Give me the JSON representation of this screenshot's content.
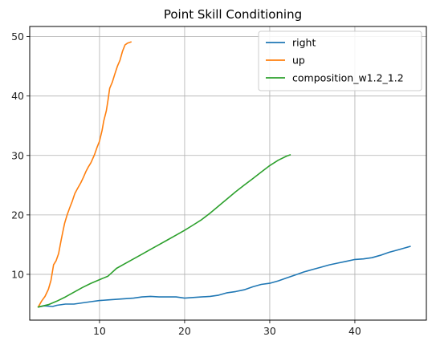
{
  "chart_data": {
    "type": "line",
    "title": "Point Skill Conditioning",
    "xlabel": "",
    "ylabel": "",
    "xlim": [
      1.8,
      48.4
    ],
    "ylim": [
      2.3,
      51.7
    ],
    "xticks": [
      10,
      20,
      30,
      40
    ],
    "yticks": [
      10,
      20,
      30,
      40,
      50
    ],
    "grid": true,
    "legend_position": "top-right",
    "series": [
      {
        "name": "right",
        "color": "#1f77b4",
        "points": [
          [
            2.8,
            4.5
          ],
          [
            3.5,
            4.7
          ],
          [
            4.5,
            4.6
          ],
          [
            5.0,
            4.8
          ],
          [
            6.0,
            5.0
          ],
          [
            7.0,
            5.0
          ],
          [
            8.0,
            5.2
          ],
          [
            9.0,
            5.4
          ],
          [
            10.0,
            5.6
          ],
          [
            11.0,
            5.7
          ],
          [
            12.0,
            5.8
          ],
          [
            13.0,
            5.9
          ],
          [
            14.0,
            6.0
          ],
          [
            15.0,
            6.2
          ],
          [
            16.0,
            6.3
          ],
          [
            17.0,
            6.2
          ],
          [
            18.0,
            6.2
          ],
          [
            19.0,
            6.2
          ],
          [
            20.0,
            6.0
          ],
          [
            21.0,
            6.1
          ],
          [
            22.0,
            6.2
          ],
          [
            23.0,
            6.3
          ],
          [
            24.0,
            6.5
          ],
          [
            25.0,
            6.9
          ],
          [
            26.0,
            7.1
          ],
          [
            27.0,
            7.4
          ],
          [
            28.0,
            7.9
          ],
          [
            29.0,
            8.3
          ],
          [
            30.0,
            8.5
          ],
          [
            31.0,
            8.9
          ],
          [
            32.0,
            9.4
          ],
          [
            33.0,
            9.9
          ],
          [
            34.0,
            10.4
          ],
          [
            35.0,
            10.8
          ],
          [
            36.0,
            11.2
          ],
          [
            37.0,
            11.6
          ],
          [
            38.0,
            11.9
          ],
          [
            39.0,
            12.2
          ],
          [
            40.0,
            12.5
          ],
          [
            41.0,
            12.6
          ],
          [
            42.0,
            12.8
          ],
          [
            43.0,
            13.2
          ],
          [
            44.0,
            13.7
          ],
          [
            45.0,
            14.1
          ],
          [
            46.0,
            14.5
          ],
          [
            46.5,
            14.7
          ]
        ]
      },
      {
        "name": "up",
        "color": "#ff7f0e",
        "points": [
          [
            2.8,
            4.5
          ],
          [
            3.2,
            5.5
          ],
          [
            3.6,
            6.3
          ],
          [
            4.0,
            7.5
          ],
          [
            4.3,
            9.0
          ],
          [
            4.6,
            11.6
          ],
          [
            4.9,
            12.3
          ],
          [
            5.2,
            13.5
          ],
          [
            5.5,
            15.8
          ],
          [
            5.7,
            17.2
          ],
          [
            5.9,
            18.6
          ],
          [
            6.2,
            20.0
          ],
          [
            6.5,
            21.2
          ],
          [
            6.8,
            22.3
          ],
          [
            7.1,
            23.6
          ],
          [
            7.4,
            24.4
          ],
          [
            7.8,
            25.4
          ],
          [
            8.1,
            26.3
          ],
          [
            8.4,
            27.3
          ],
          [
            8.7,
            28.1
          ],
          [
            9.0,
            28.8
          ],
          [
            9.4,
            30.1
          ],
          [
            9.7,
            31.3
          ],
          [
            10.0,
            32.4
          ],
          [
            10.3,
            34.2
          ],
          [
            10.5,
            35.8
          ],
          [
            10.8,
            37.5
          ],
          [
            11.0,
            39.3
          ],
          [
            11.2,
            41.3
          ],
          [
            11.5,
            42.3
          ],
          [
            11.8,
            43.7
          ],
          [
            12.1,
            45.0
          ],
          [
            12.4,
            46.0
          ],
          [
            12.7,
            47.5
          ],
          [
            13.0,
            48.6
          ],
          [
            13.3,
            48.9
          ],
          [
            13.7,
            49.1
          ]
        ]
      },
      {
        "name": "composition_w1.2_1.2",
        "color": "#2ca02c",
        "points": [
          [
            2.8,
            4.5
          ],
          [
            4.0,
            4.9
          ],
          [
            5.0,
            5.5
          ],
          [
            6.0,
            6.2
          ],
          [
            7.0,
            7.0
          ],
          [
            8.0,
            7.8
          ],
          [
            9.0,
            8.5
          ],
          [
            10.0,
            9.1
          ],
          [
            11.0,
            9.7
          ],
          [
            12.0,
            11.0
          ],
          [
            13.0,
            11.8
          ],
          [
            14.0,
            12.6
          ],
          [
            15.0,
            13.4
          ],
          [
            16.0,
            14.2
          ],
          [
            17.0,
            15.0
          ],
          [
            18.0,
            15.8
          ],
          [
            19.0,
            16.6
          ],
          [
            20.0,
            17.4
          ],
          [
            21.0,
            18.3
          ],
          [
            22.0,
            19.2
          ],
          [
            23.0,
            20.3
          ],
          [
            24.0,
            21.5
          ],
          [
            25.0,
            22.7
          ],
          [
            26.0,
            23.9
          ],
          [
            27.0,
            25.0
          ],
          [
            28.0,
            26.1
          ],
          [
            29.0,
            27.2
          ],
          [
            30.0,
            28.3
          ],
          [
            31.0,
            29.2
          ],
          [
            32.0,
            29.9
          ],
          [
            32.4,
            30.1
          ]
        ]
      }
    ]
  }
}
